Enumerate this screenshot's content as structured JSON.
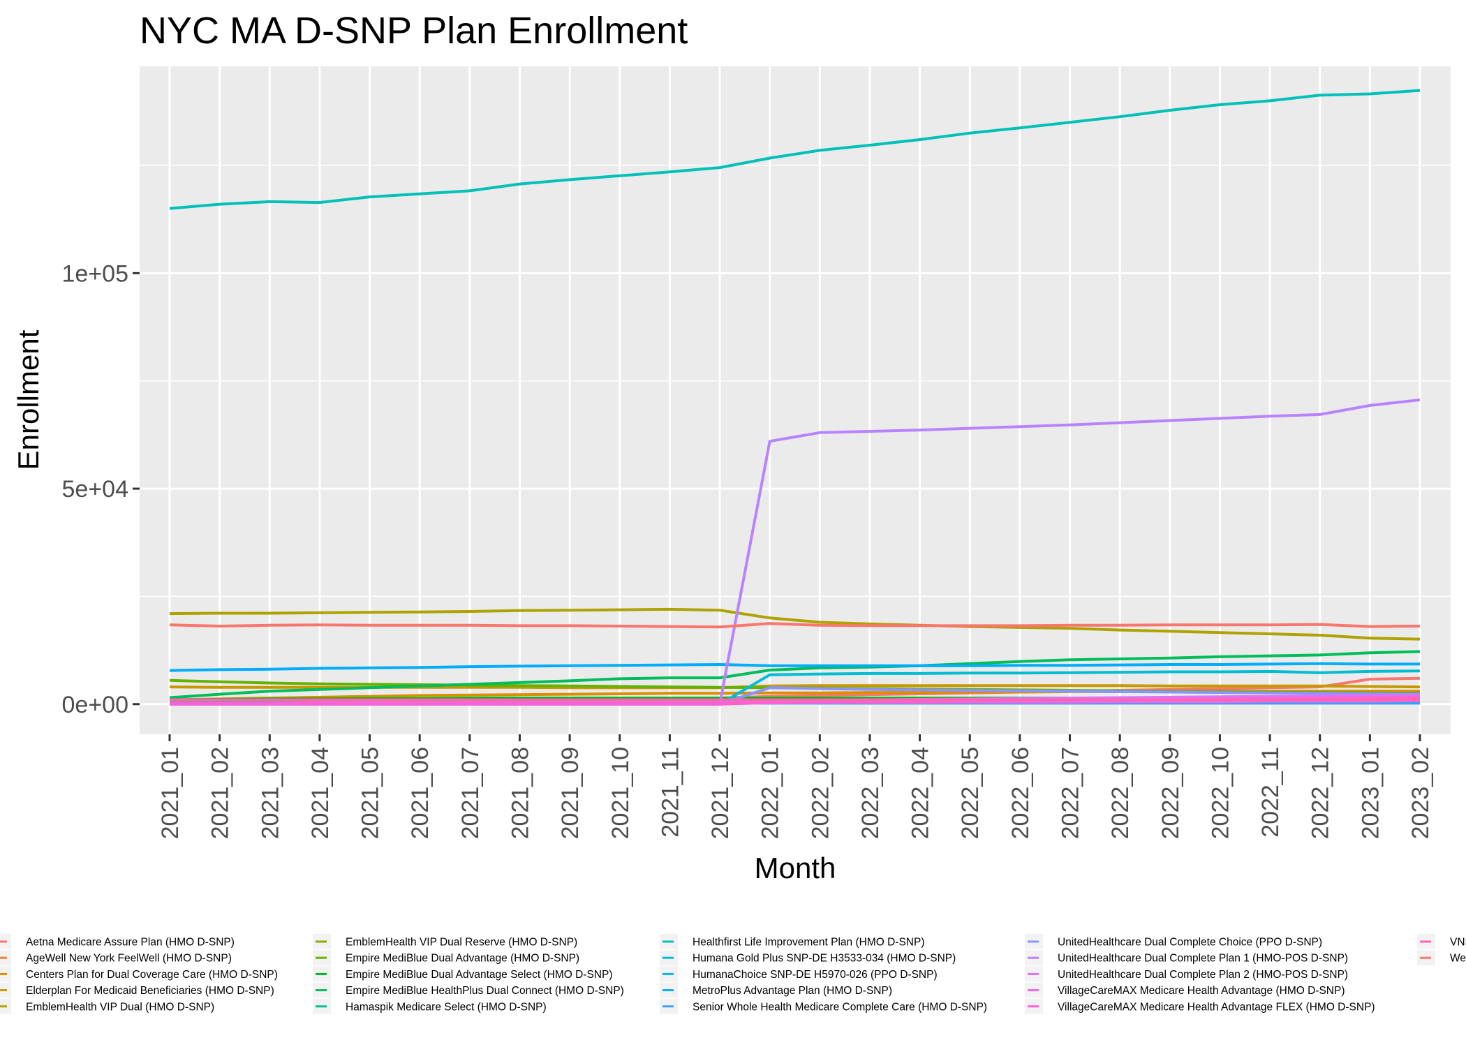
{
  "chart_data": {
    "type": "line",
    "title": "NYC MA D-SNP Plan Enrollment",
    "xlabel": "Month",
    "ylabel": "Enrollment",
    "x": [
      "2021_01",
      "2021_02",
      "2021_03",
      "2021_04",
      "2021_05",
      "2021_06",
      "2021_07",
      "2021_08",
      "2021_09",
      "2021_10",
      "2021_11",
      "2021_12",
      "2022_01",
      "2022_02",
      "2022_03",
      "2022_04",
      "2022_05",
      "2022_06",
      "2022_07",
      "2022_08",
      "2022_09",
      "2022_10",
      "2022_11",
      "2022_12",
      "2023_01",
      "2023_02"
    ],
    "ylim": [
      -7000,
      148000
    ],
    "y_ticks": [
      0,
      50000,
      100000
    ],
    "y_tick_labels": [
      "0e+00",
      "5e+04",
      "1e+05"
    ],
    "y_minor_ticks": [
      25000,
      75000,
      125000
    ],
    "grid": true,
    "legend_position": "bottom",
    "series": [
      {
        "name": "Aetna Medicare Assure Plan (HMO D-SNP)",
        "color": "#F8766D",
        "values": [
          300,
          400,
          500,
          600,
          700,
          800,
          900,
          1000,
          1100,
          1200,
          1300,
          1400,
          1800,
          2000,
          2200,
          2400,
          2600,
          2800,
          3000,
          3200,
          3400,
          3600,
          3800,
          4000,
          5800,
          6000
        ]
      },
      {
        "name": "AgeWell New York FeelWell (HMO D-SNP)",
        "color": "#EC8239",
        "values": [
          200,
          200,
          200,
          200,
          200,
          200,
          200,
          200,
          200,
          200,
          200,
          200,
          200,
          200,
          200,
          200,
          200,
          200,
          200,
          200,
          200,
          200,
          200,
          200,
          200,
          200
        ]
      },
      {
        "name": "Centers Plan for Dual Coverage Care (HMO D-SNP)",
        "color": "#DB8E00",
        "values": [
          1000,
          1200,
          1400,
          1600,
          1800,
          2000,
          2100,
          2200,
          2300,
          2400,
          2500,
          2500,
          2600,
          2600,
          2700,
          2700,
          2800,
          2800,
          2900,
          2900,
          3000,
          3000,
          3000,
          3000,
          3000,
          3000
        ]
      },
      {
        "name": "Elderplan For Medicaid Beneficiaries (HMO D-SNP)",
        "color": "#C79800",
        "values": [
          4000,
          3900,
          3900,
          3900,
          3900,
          3900,
          3900,
          3900,
          3800,
          3800,
          3800,
          3800,
          4200,
          4300,
          4300,
          4300,
          4300,
          4300,
          4300,
          4300,
          4200,
          4200,
          4200,
          4200,
          4100,
          4000
        ]
      },
      {
        "name": "EmblemHealth VIP Dual (HMO D-SNP)",
        "color": "#AEA200",
        "values": [
          21000,
          21100,
          21100,
          21200,
          21300,
          21400,
          21500,
          21700,
          21800,
          21900,
          22000,
          21800,
          20000,
          19000,
          18600,
          18300,
          18000,
          17800,
          17600,
          17200,
          16900,
          16600,
          16300,
          16000,
          15300,
          15100
        ]
      },
      {
        "name": "EmblemHealth VIP Dual Reserve (HMO D-SNP)",
        "color": "#8FAA00",
        "values": [
          500,
          500,
          500,
          500,
          500,
          500,
          500,
          500,
          500,
          500,
          500,
          500,
          500,
          500,
          500,
          500,
          500,
          500,
          500,
          500,
          500,
          500,
          500,
          500,
          500,
          500
        ]
      },
      {
        "name": "Empire MediBlue Dual Advantage (HMO D-SNP)",
        "color": "#64B200",
        "values": [
          5500,
          5200,
          4900,
          4700,
          4600,
          4500,
          4400,
          4300,
          4200,
          4100,
          4000,
          3900,
          3800,
          3700,
          3600,
          3500,
          3400,
          3300,
          3200,
          3100,
          3000,
          2900,
          2800,
          2700,
          2600,
          2500
        ]
      },
      {
        "name": "Empire MediBlue Dual Advantage Select (HMO D-SNP)",
        "color": "#00B81B",
        "values": [
          1000,
          1100,
          1200,
          1200,
          1300,
          1300,
          1400,
          1400,
          1400,
          1400,
          1400,
          1400,
          1400,
          1400,
          1400,
          1400,
          1400,
          1400,
          1400,
          1400,
          1400,
          1400,
          1400,
          1400,
          1400,
          1400
        ]
      },
      {
        "name": "Empire MediBlue HealthPlus Dual Connect (HMO D-SNP)",
        "color": "#00BD5C",
        "values": [
          1500,
          2300,
          3000,
          3400,
          3800,
          4200,
          4600,
          5000,
          5400,
          5900,
          6100,
          6100,
          7900,
          8400,
          8600,
          8900,
          9400,
          9900,
          10300,
          10500,
          10700,
          11000,
          11200,
          11400,
          11900,
          12200
        ]
      },
      {
        "name": "Hamaspik Medicare Select (HMO D-SNP)",
        "color": "#00C08E",
        "values": [
          300,
          300,
          300,
          300,
          300,
          300,
          300,
          300,
          300,
          300,
          300,
          300,
          300,
          300,
          300,
          300,
          300,
          300,
          300,
          300,
          300,
          300,
          300,
          300,
          300,
          300
        ]
      },
      {
        "name": "Healthfirst Life Improvement Plan (HMO D-SNP)",
        "color": "#00C1B7",
        "values": [
          115000,
          116000,
          116600,
          116400,
          117700,
          118400,
          119100,
          120700,
          121700,
          122600,
          123500,
          124500,
          126700,
          128500,
          129700,
          131000,
          132500,
          133700,
          135000,
          136300,
          137800,
          139100,
          140000,
          141300,
          141600,
          142400
        ]
      },
      {
        "name": "Humana Gold Plus SNP-DE H3533-034 (HMO D-SNP)",
        "color": "#00BDD4",
        "values": [
          0,
          0,
          0,
          0,
          0,
          0,
          0,
          0,
          0,
          0,
          0,
          0,
          6800,
          7000,
          7100,
          7100,
          7200,
          7200,
          7300,
          7400,
          7500,
          7500,
          7600,
          7300,
          7600,
          7700
        ]
      },
      {
        "name": "HumanaChoice SNP-DE H5970-026 (PPO D-SNP)",
        "color": "#00B7E8",
        "values": [
          0,
          0,
          0,
          0,
          0,
          0,
          0,
          0,
          0,
          0,
          0,
          0,
          400,
          500,
          500,
          500,
          600,
          600,
          600,
          600,
          600,
          600,
          600,
          600,
          600,
          600
        ]
      },
      {
        "name": "MetroPlus Advantage Plan (HMO D-SNP)",
        "color": "#00ADFA",
        "values": [
          7800,
          8000,
          8100,
          8300,
          8400,
          8500,
          8700,
          8800,
          8900,
          9000,
          9100,
          9200,
          8900,
          8900,
          8900,
          8900,
          8900,
          9000,
          9000,
          9100,
          9200,
          9200,
          9300,
          9400,
          9300,
          9300
        ]
      },
      {
        "name": "Senior Whole Health Medicare Complete Care (HMO D-SNP)",
        "color": "#3D9EFF",
        "values": [
          200,
          200,
          200,
          200,
          200,
          200,
          200,
          200,
          200,
          200,
          200,
          200,
          200,
          200,
          200,
          200,
          200,
          200,
          200,
          200,
          200,
          200,
          200,
          200,
          200,
          200
        ]
      },
      {
        "name": "UnitedHealthcare Dual Complete Choice (PPO D-SNP)",
        "color": "#8B93FF",
        "values": [
          0,
          0,
          0,
          0,
          0,
          0,
          0,
          0,
          0,
          0,
          0,
          0,
          3800,
          3600,
          3400,
          3300,
          3200,
          3100,
          3000,
          2900,
          2800,
          2700,
          2600,
          2500,
          2400,
          2300
        ]
      },
      {
        "name": "UnitedHealthcare Dual Complete Plan 1 (HMO-POS D-SNP)",
        "color": "#B983FF",
        "values": [
          0,
          0,
          0,
          0,
          0,
          0,
          0,
          0,
          0,
          0,
          0,
          0,
          61000,
          63000,
          63300,
          63600,
          64000,
          64400,
          64800,
          65300,
          65800,
          66300,
          66800,
          67200,
          69300,
          70600
        ]
      },
      {
        "name": "UnitedHealthcare Dual Complete Plan 2 (HMO-POS D-SNP)",
        "color": "#DA72FB",
        "values": [
          0,
          0,
          0,
          0,
          0,
          0,
          0,
          0,
          0,
          0,
          0,
          0,
          800,
          900,
          1000,
          1100,
          1200,
          1300,
          1400,
          1500,
          1600,
          1700,
          1800,
          1900,
          2000,
          2100
        ]
      },
      {
        "name": "VillageCareMAX Medicare Health Advantage (HMO D-SNP)",
        "color": "#EF67EB",
        "values": [
          200,
          200,
          200,
          300,
          300,
          300,
          300,
          300,
          300,
          300,
          300,
          300,
          300,
          400,
          400,
          400,
          500,
          500,
          500,
          600,
          600,
          600,
          700,
          700,
          700,
          800
        ]
      },
      {
        "name": "VillageCareMAX Medicare Health Advantage FLEX (HMO D-SNP)",
        "color": "#FD61D1",
        "values": [
          0,
          0,
          0,
          0,
          0,
          0,
          0,
          0,
          0,
          0,
          0,
          0,
          300,
          400,
          500,
          600,
          700,
          800,
          900,
          1000,
          1100,
          1200,
          1300,
          1400,
          1500,
          1600
        ]
      },
      {
        "name": "VNS",
        "color": "#FF65AE",
        "values": [
          1000,
          1000,
          1000,
          1000,
          1000,
          1000,
          1000,
          1000,
          1000,
          1000,
          1000,
          1000,
          1000,
          1000,
          1000,
          1000,
          1000,
          1000,
          1000,
          1000,
          1000,
          1000,
          1000,
          1000,
          1000,
          1000
        ]
      },
      {
        "name": "We",
        "color": "#F8766D",
        "values": [
          18400,
          18100,
          18300,
          18400,
          18300,
          18300,
          18300,
          18200,
          18200,
          18100,
          18000,
          17900,
          18700,
          18300,
          18200,
          18200,
          18200,
          18200,
          18300,
          18300,
          18400,
          18400,
          18400,
          18500,
          18000,
          18100
        ]
      }
    ]
  }
}
